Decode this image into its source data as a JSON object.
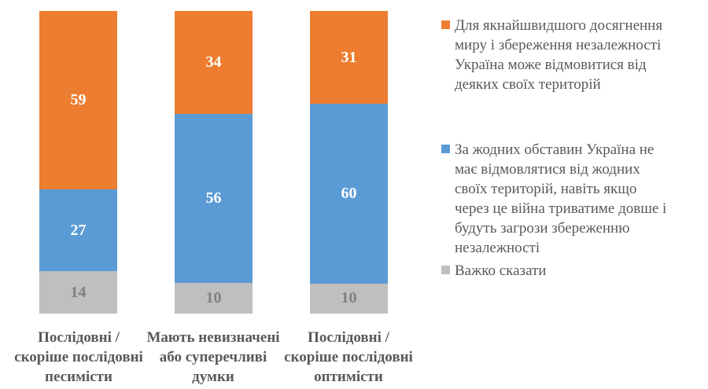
{
  "chart_data": {
    "type": "bar",
    "stacked": true,
    "orientation": "vertical",
    "grid": false,
    "axes_hidden": true,
    "legend_position": "right",
    "background_color": "#FFFFFF",
    "text_color": "#595959",
    "categories": [
      "Послідовні /\nскоріше послідовні\nпесимісти",
      "Мають невизначені\nабо суперечливі\nдумки",
      "Послідовні /\nскоріше послідовні\nоптимісти"
    ],
    "series": [
      {
        "name": "Для якнайшвидшого досягнення\nмиру і збереження незалежності\nУкраїна може відмовитися від\nдеяких своїх територій",
        "color": "#ED7D31",
        "label_color": "#FFFFFF",
        "values": [
          59,
          34,
          31
        ]
      },
      {
        "name": "За жодних обставин Україна не\nмає відмовлятися від жодних\nсвоїх територій, навіть якщо\nчерез це війна триватиме довше і\nбудуть загрози збереженню\nнезалежності",
        "color": "#5B9BD5",
        "label_color": "#FFFFFF",
        "values": [
          27,
          56,
          60
        ]
      },
      {
        "name": "Важко сказати",
        "color": "#BFBFBF",
        "label_color": "#808080",
        "values": [
          14,
          10,
          10
        ]
      }
    ]
  }
}
